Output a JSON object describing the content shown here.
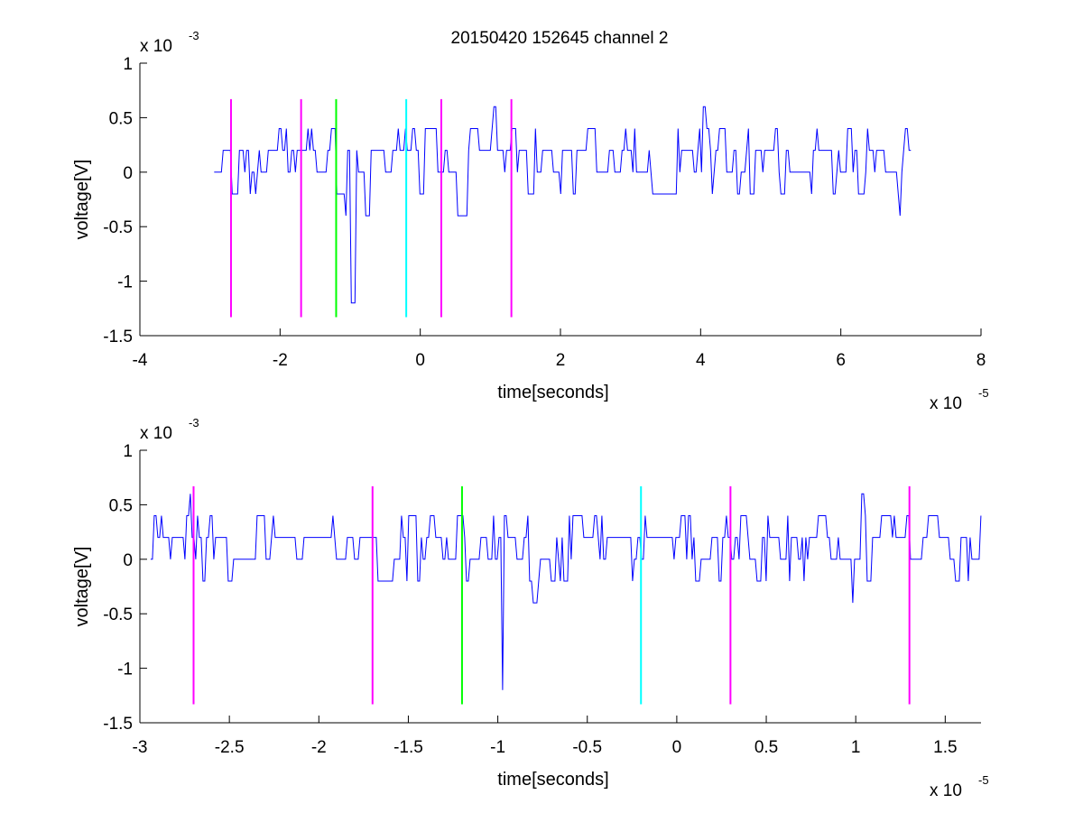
{
  "figure": {
    "title": "20150420 152645 channel 2",
    "background": "#ffffff"
  },
  "chart_data": [
    {
      "type": "line",
      "xlabel": "time[seconds]",
      "ylabel": "voltage[V]",
      "x_multiplier": "x 10",
      "x_exponent": "-5",
      "y_multiplier": "x 10",
      "y_exponent": "-3",
      "xlim": [
        -4,
        8
      ],
      "ylim": [
        -1.5,
        1
      ],
      "xticks": [
        -4,
        -2,
        0,
        2,
        4,
        6,
        8
      ],
      "xtick_labels": [
        "-4",
        "-2",
        "0",
        "2",
        "4",
        "6",
        "8"
      ],
      "yticks": [
        -1.5,
        -1,
        -0.5,
        0,
        0.5,
        1
      ],
      "ytick_labels": [
        "-1.5",
        "-1",
        "-0.5",
        "0",
        "0.5",
        "1"
      ],
      "grid": false,
      "trace_color": "#0000ff",
      "trace_x_range": [
        -2.94,
        7.0
      ],
      "trace_noise_levels": [
        -0.2,
        0,
        0.2,
        0.4
      ],
      "trace_spikes": [
        {
          "x": -1.25,
          "y": 0.4
        },
        {
          "x": -1.05,
          "y": -0.4
        },
        {
          "x": -0.97,
          "y": -1.2
        },
        {
          "x": -0.78,
          "y": -0.4
        },
        {
          "x": 0.55,
          "y": -0.4
        },
        {
          "x": 1.05,
          "y": 0.6
        },
        {
          "x": 4.05,
          "y": 0.6
        },
        {
          "x": 6.85,
          "y": -0.4
        }
      ],
      "markers": [
        {
          "x": -2.7,
          "color": "#ff00ff"
        },
        {
          "x": -1.7,
          "color": "#ff00ff"
        },
        {
          "x": -1.2,
          "color": "#00ff00"
        },
        {
          "x": -0.2,
          "color": "#00ffff"
        },
        {
          "x": 0.3,
          "color": "#ff00ff"
        },
        {
          "x": 1.3,
          "color": "#ff00ff"
        }
      ],
      "marker_range": [
        -1.33,
        0.67
      ]
    },
    {
      "type": "line",
      "xlabel": "time[seconds]",
      "ylabel": "voltage[V]",
      "x_multiplier": "x 10",
      "x_exponent": "-5",
      "y_multiplier": "x 10",
      "y_exponent": "-3",
      "xlim": [
        -3.0,
        1.7
      ],
      "ylim": [
        -1.5,
        1
      ],
      "xticks": [
        -3,
        -2.5,
        -2,
        -1.5,
        -1,
        -0.5,
        0,
        0.5,
        1,
        1.5
      ],
      "xtick_labels": [
        "-3",
        "-2.5",
        "-2",
        "-1.5",
        "-1",
        "-0.5",
        "0",
        "0.5",
        "1",
        "1.5"
      ],
      "yticks": [
        -1.5,
        -1,
        -0.5,
        0,
        0.5,
        1
      ],
      "ytick_labels": [
        "-1.5",
        "-1",
        "-0.5",
        "0",
        "0.5",
        "1"
      ],
      "grid": false,
      "trace_color": "#0000ff",
      "trace_x_range": [
        -2.94,
        1.7
      ],
      "trace_noise_levels": [
        -0.2,
        0,
        0.2,
        0.4
      ],
      "trace_spikes": [
        {
          "x": -2.72,
          "y": 0.6
        },
        {
          "x": -1.67,
          "y": -0.2
        },
        {
          "x": -1.22,
          "y": 0.4
        },
        {
          "x": -1.17,
          "y": -0.2
        },
        {
          "x": -0.97,
          "y": -1.2
        },
        {
          "x": -0.8,
          "y": -0.4
        },
        {
          "x": 0.98,
          "y": -0.4
        },
        {
          "x": 1.03,
          "y": 0.6
        }
      ],
      "markers": [
        {
          "x": -2.7,
          "color": "#ff00ff"
        },
        {
          "x": -1.7,
          "color": "#ff00ff"
        },
        {
          "x": -1.2,
          "color": "#00ff00"
        },
        {
          "x": -0.2,
          "color": "#00ffff"
        },
        {
          "x": 0.3,
          "color": "#ff00ff"
        },
        {
          "x": 1.3,
          "color": "#ff00ff"
        }
      ],
      "marker_range": [
        -1.33,
        0.67
      ]
    }
  ]
}
